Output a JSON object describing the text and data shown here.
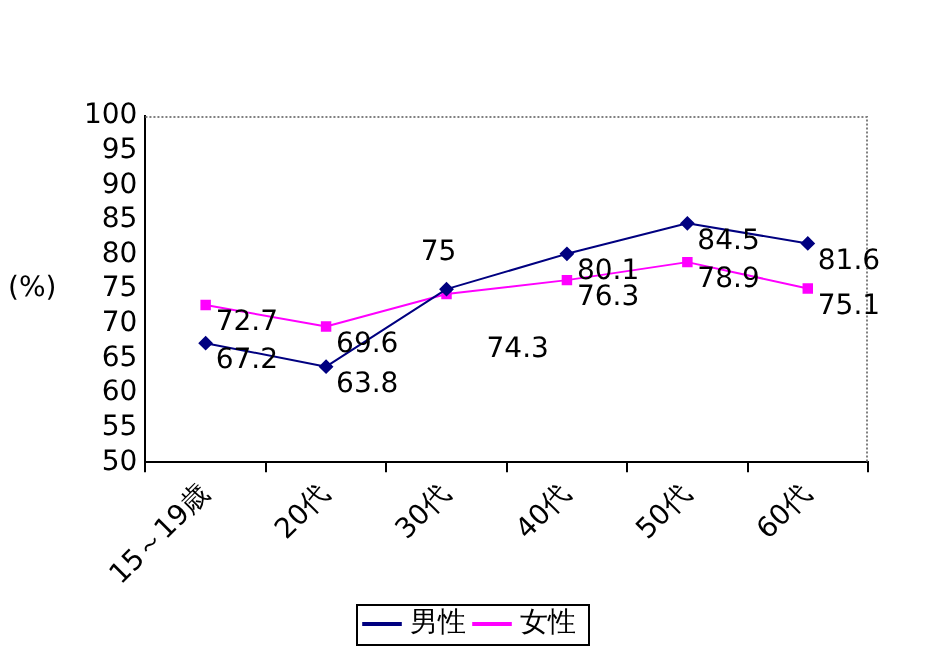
{
  "chart_data": {
    "type": "line",
    "ylabel": "(%)",
    "categories": [
      "15～19歳",
      "20代",
      "30代",
      "40代",
      "50代",
      "60代"
    ],
    "series": [
      {
        "name": "男性",
        "color": "#000080",
        "marker": "diamond",
        "values": [
          67.2,
          63.8,
          75,
          80.1,
          84.5,
          81.6
        ]
      },
      {
        "name": "女性",
        "color": "#ff00ff",
        "marker": "square",
        "values": [
          72.7,
          69.6,
          74.3,
          76.3,
          78.9,
          75.1
        ]
      }
    ],
    "ylim": [
      50,
      100
    ],
    "yticks": [
      50,
      55,
      60,
      65,
      70,
      75,
      80,
      85,
      90,
      95,
      100
    ],
    "data_labels": true,
    "legend": "bottom"
  }
}
